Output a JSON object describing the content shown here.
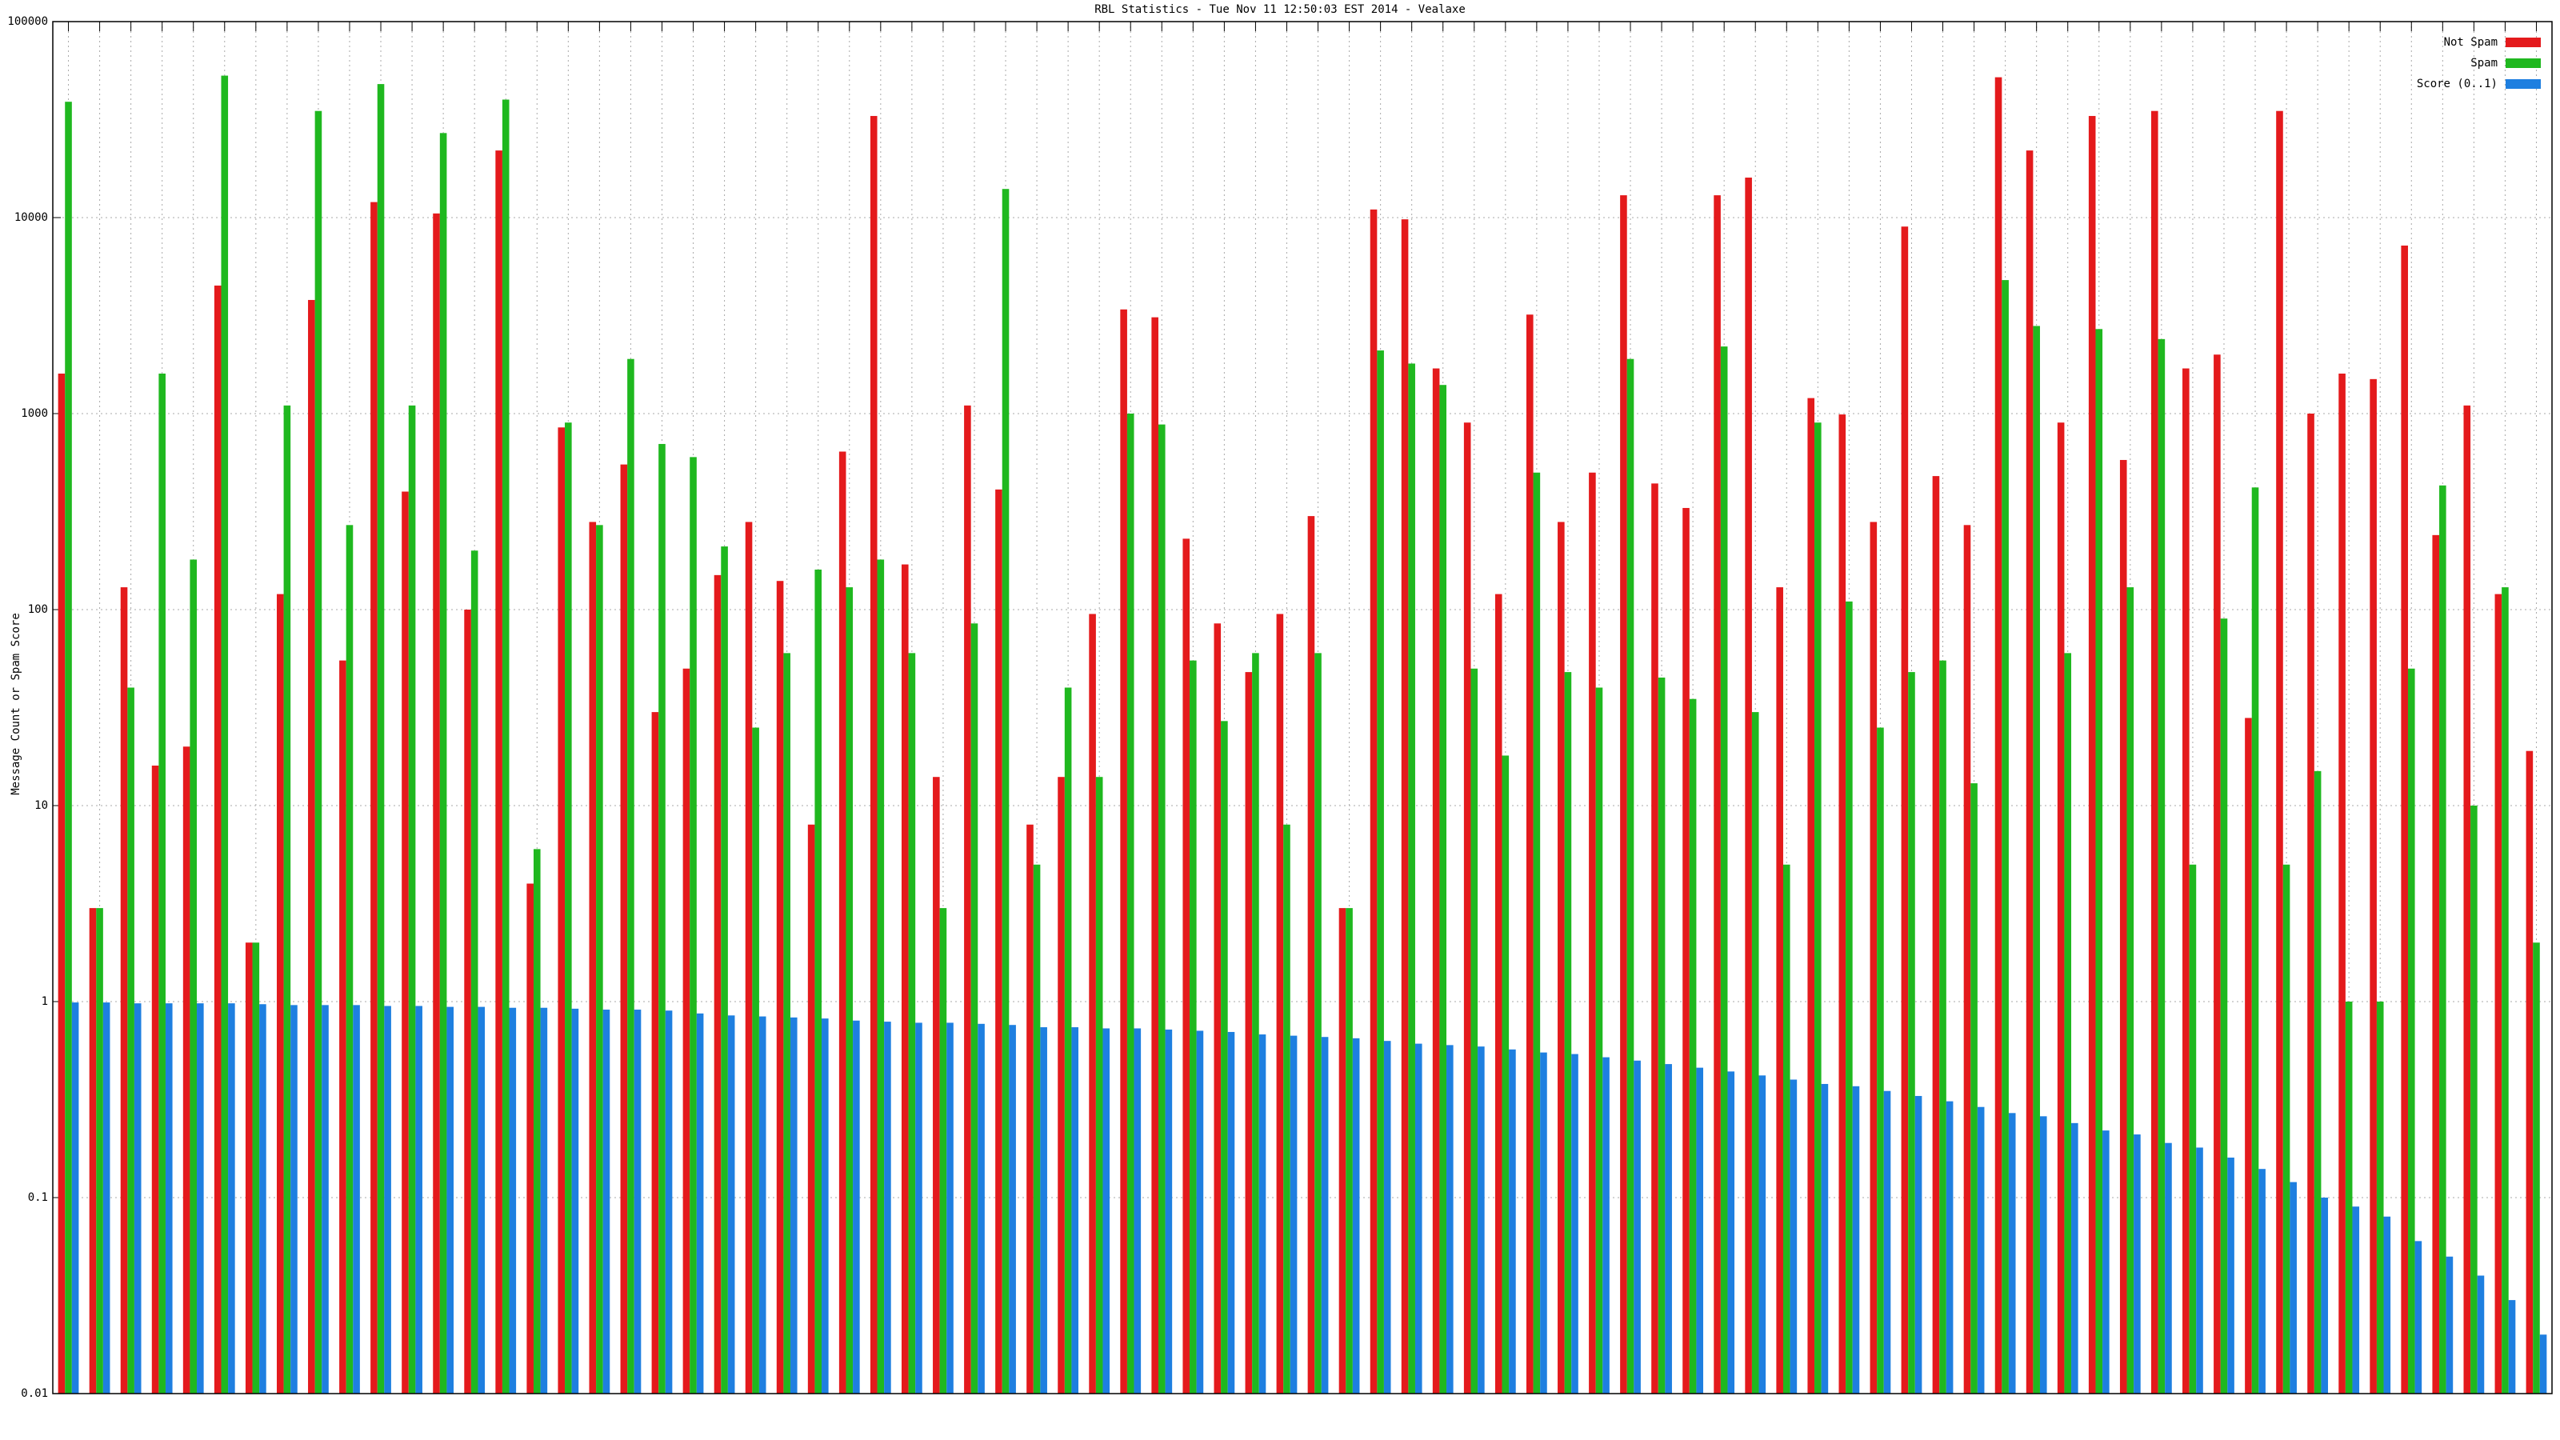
{
  "chart_data": {
    "type": "bar",
    "title": "RBL Statistics - Tue Nov 11 12:50:03 EST 2014 - Vealaxe",
    "y_label": "Message Count or Spam Score",
    "log": true,
    "grid": true,
    "legend": "top-right",
    "ylim": [
      0.01,
      100000
    ],
    "yticks": [
      0.01,
      0.1,
      1,
      10,
      100,
      1000,
      10000,
      100000
    ],
    "categories": [
      null,
      null,
      null,
      null,
      null,
      null,
      null,
      null,
      null,
      null,
      null,
      null,
      null,
      null,
      null,
      null,
      null,
      null,
      null,
      null,
      null,
      null,
      null,
      null,
      null,
      null,
      null,
      null,
      null,
      null,
      null,
      null,
      null,
      null,
      null,
      null,
      null,
      null,
      null,
      null,
      null,
      null,
      null,
      null,
      null,
      null,
      null,
      null,
      null,
      null,
      null,
      null,
      null,
      null,
      null,
      null,
      null,
      null,
      null,
      null,
      null,
      null,
      null,
      null,
      null,
      null,
      null,
      null,
      null,
      null,
      null,
      null,
      null,
      null,
      null,
      null,
      null,
      null,
      null,
      null
    ],
    "series": [
      {
        "name": "Not Spam",
        "color": "#e41a1c",
        "values": [
          1600,
          3,
          130,
          16,
          20,
          4500,
          2,
          120,
          3800,
          55,
          12000,
          400,
          10500,
          100,
          22000,
          4,
          850,
          280,
          550,
          30,
          50,
          150,
          280,
          140,
          8,
          640,
          33000,
          170,
          14,
          1100,
          410,
          8,
          14,
          95,
          3400,
          3100,
          230,
          85,
          48,
          95,
          300,
          3,
          11000,
          9800,
          1700,
          900,
          120,
          3200,
          280,
          500,
          13000,
          440,
          330,
          13000,
          16000,
          130,
          1200,
          990,
          280,
          9000,
          480,
          270,
          52000,
          22000,
          900,
          33000,
          580,
          35000,
          1700,
          2000,
          28,
          35000,
          1000,
          1600,
          1500,
          7200,
          240,
          1100,
          120,
          19
        ]
      },
      {
        "name": "Spam",
        "color": "#1fb81f",
        "values": [
          39000,
          3,
          40,
          1600,
          180,
          53000,
          2,
          1100,
          35000,
          270,
          48000,
          1100,
          27000,
          200,
          40000,
          6,
          900,
          270,
          1900,
          700,
          600,
          210,
          25,
          60,
          160,
          130,
          180,
          60,
          3,
          85,
          14000,
          5,
          40,
          14,
          1000,
          880,
          55,
          27,
          60,
          8,
          60,
          3,
          2100,
          1800,
          1400,
          50,
          18,
          500,
          48,
          40,
          1900,
          45,
          35,
          2200,
          30,
          5,
          900,
          110,
          25,
          48,
          55,
          13,
          4800,
          2800,
          60,
          2700,
          130,
          2400,
          5,
          90,
          420,
          5,
          15,
          1,
          1,
          50,
          430,
          10,
          130,
          2
        ]
      },
      {
        "name": "Score (0..1)",
        "color": "#1e7fe0",
        "values": [
          0.99,
          0.99,
          0.98,
          0.98,
          0.98,
          0.98,
          0.97,
          0.96,
          0.96,
          0.96,
          0.95,
          0.95,
          0.94,
          0.94,
          0.93,
          0.93,
          0.92,
          0.91,
          0.91,
          0.9,
          0.87,
          0.85,
          0.84,
          0.83,
          0.82,
          0.8,
          0.79,
          0.78,
          0.78,
          0.77,
          0.76,
          0.74,
          0.74,
          0.73,
          0.73,
          0.72,
          0.71,
          0.7,
          0.68,
          0.67,
          0.66,
          0.65,
          0.63,
          0.61,
          0.6,
          0.59,
          0.57,
          0.55,
          0.54,
          0.52,
          0.5,
          0.48,
          0.46,
          0.44,
          0.42,
          0.4,
          0.38,
          0.37,
          0.35,
          0.33,
          0.31,
          0.29,
          0.27,
          0.26,
          0.24,
          0.22,
          0.21,
          0.19,
          0.18,
          0.16,
          0.14,
          0.12,
          0.1,
          0.09,
          0.08,
          0.06,
          0.05,
          0.04,
          0.03,
          0.02
        ]
      }
    ]
  }
}
